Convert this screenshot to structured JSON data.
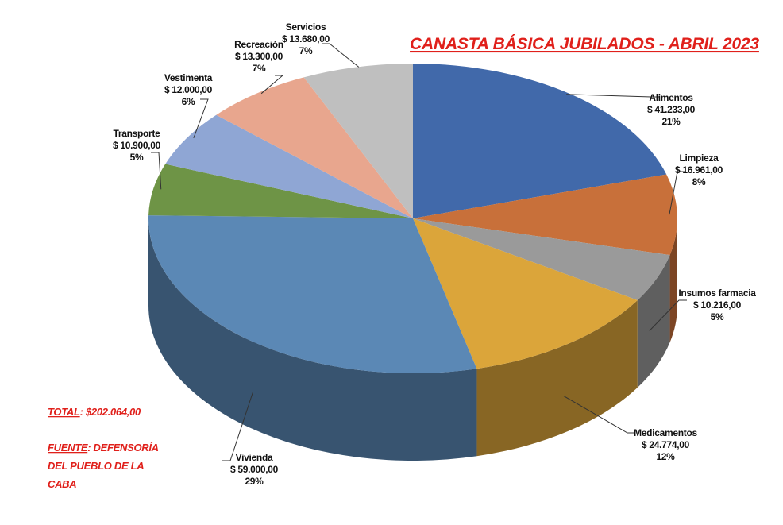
{
  "chart_data": {
    "type": "pie3d",
    "title": "CANASTA BÁSICA JUBILADOS - ABRIL 2023",
    "categories": [
      "Alimentos",
      "Limpieza",
      "Insumos farmacia",
      "Medicamentos",
      "Vivienda",
      "Transporte",
      "Vestimenta",
      "Recreación",
      "Servicios"
    ],
    "values": [
      41233,
      16961,
      10216,
      24774,
      59000,
      10900,
      12000,
      13300,
      13680
    ],
    "value_labels": [
      "$ 41.233,00",
      "$ 16.961,00",
      "$ 10.216,00",
      "$ 24.774,00",
      "$ 59.000,00",
      "$ 10.900,00",
      "$ 12.000,00",
      "$ 13.300,00",
      "$ 13.680,00"
    ],
    "percent_labels": [
      "21%",
      "8%",
      "5%",
      "12%",
      "29%",
      "5%",
      "6%",
      "7%",
      "7%"
    ],
    "colors": [
      "#4169aa",
      "#c8703a",
      "#9a9a9a",
      "#dba53a",
      "#5b88b5",
      "#6e9446",
      "#8fa6d4",
      "#e8a68e",
      "#bfbfbf"
    ],
    "annotations": {
      "total_label": "TOTAL",
      "total_text": ": $202.064,00",
      "source_label": "FUENTE",
      "source_lines": [
        ": DEFENSORÍA",
        "DEL PUEBLO DE LA",
        "CABA"
      ]
    }
  }
}
